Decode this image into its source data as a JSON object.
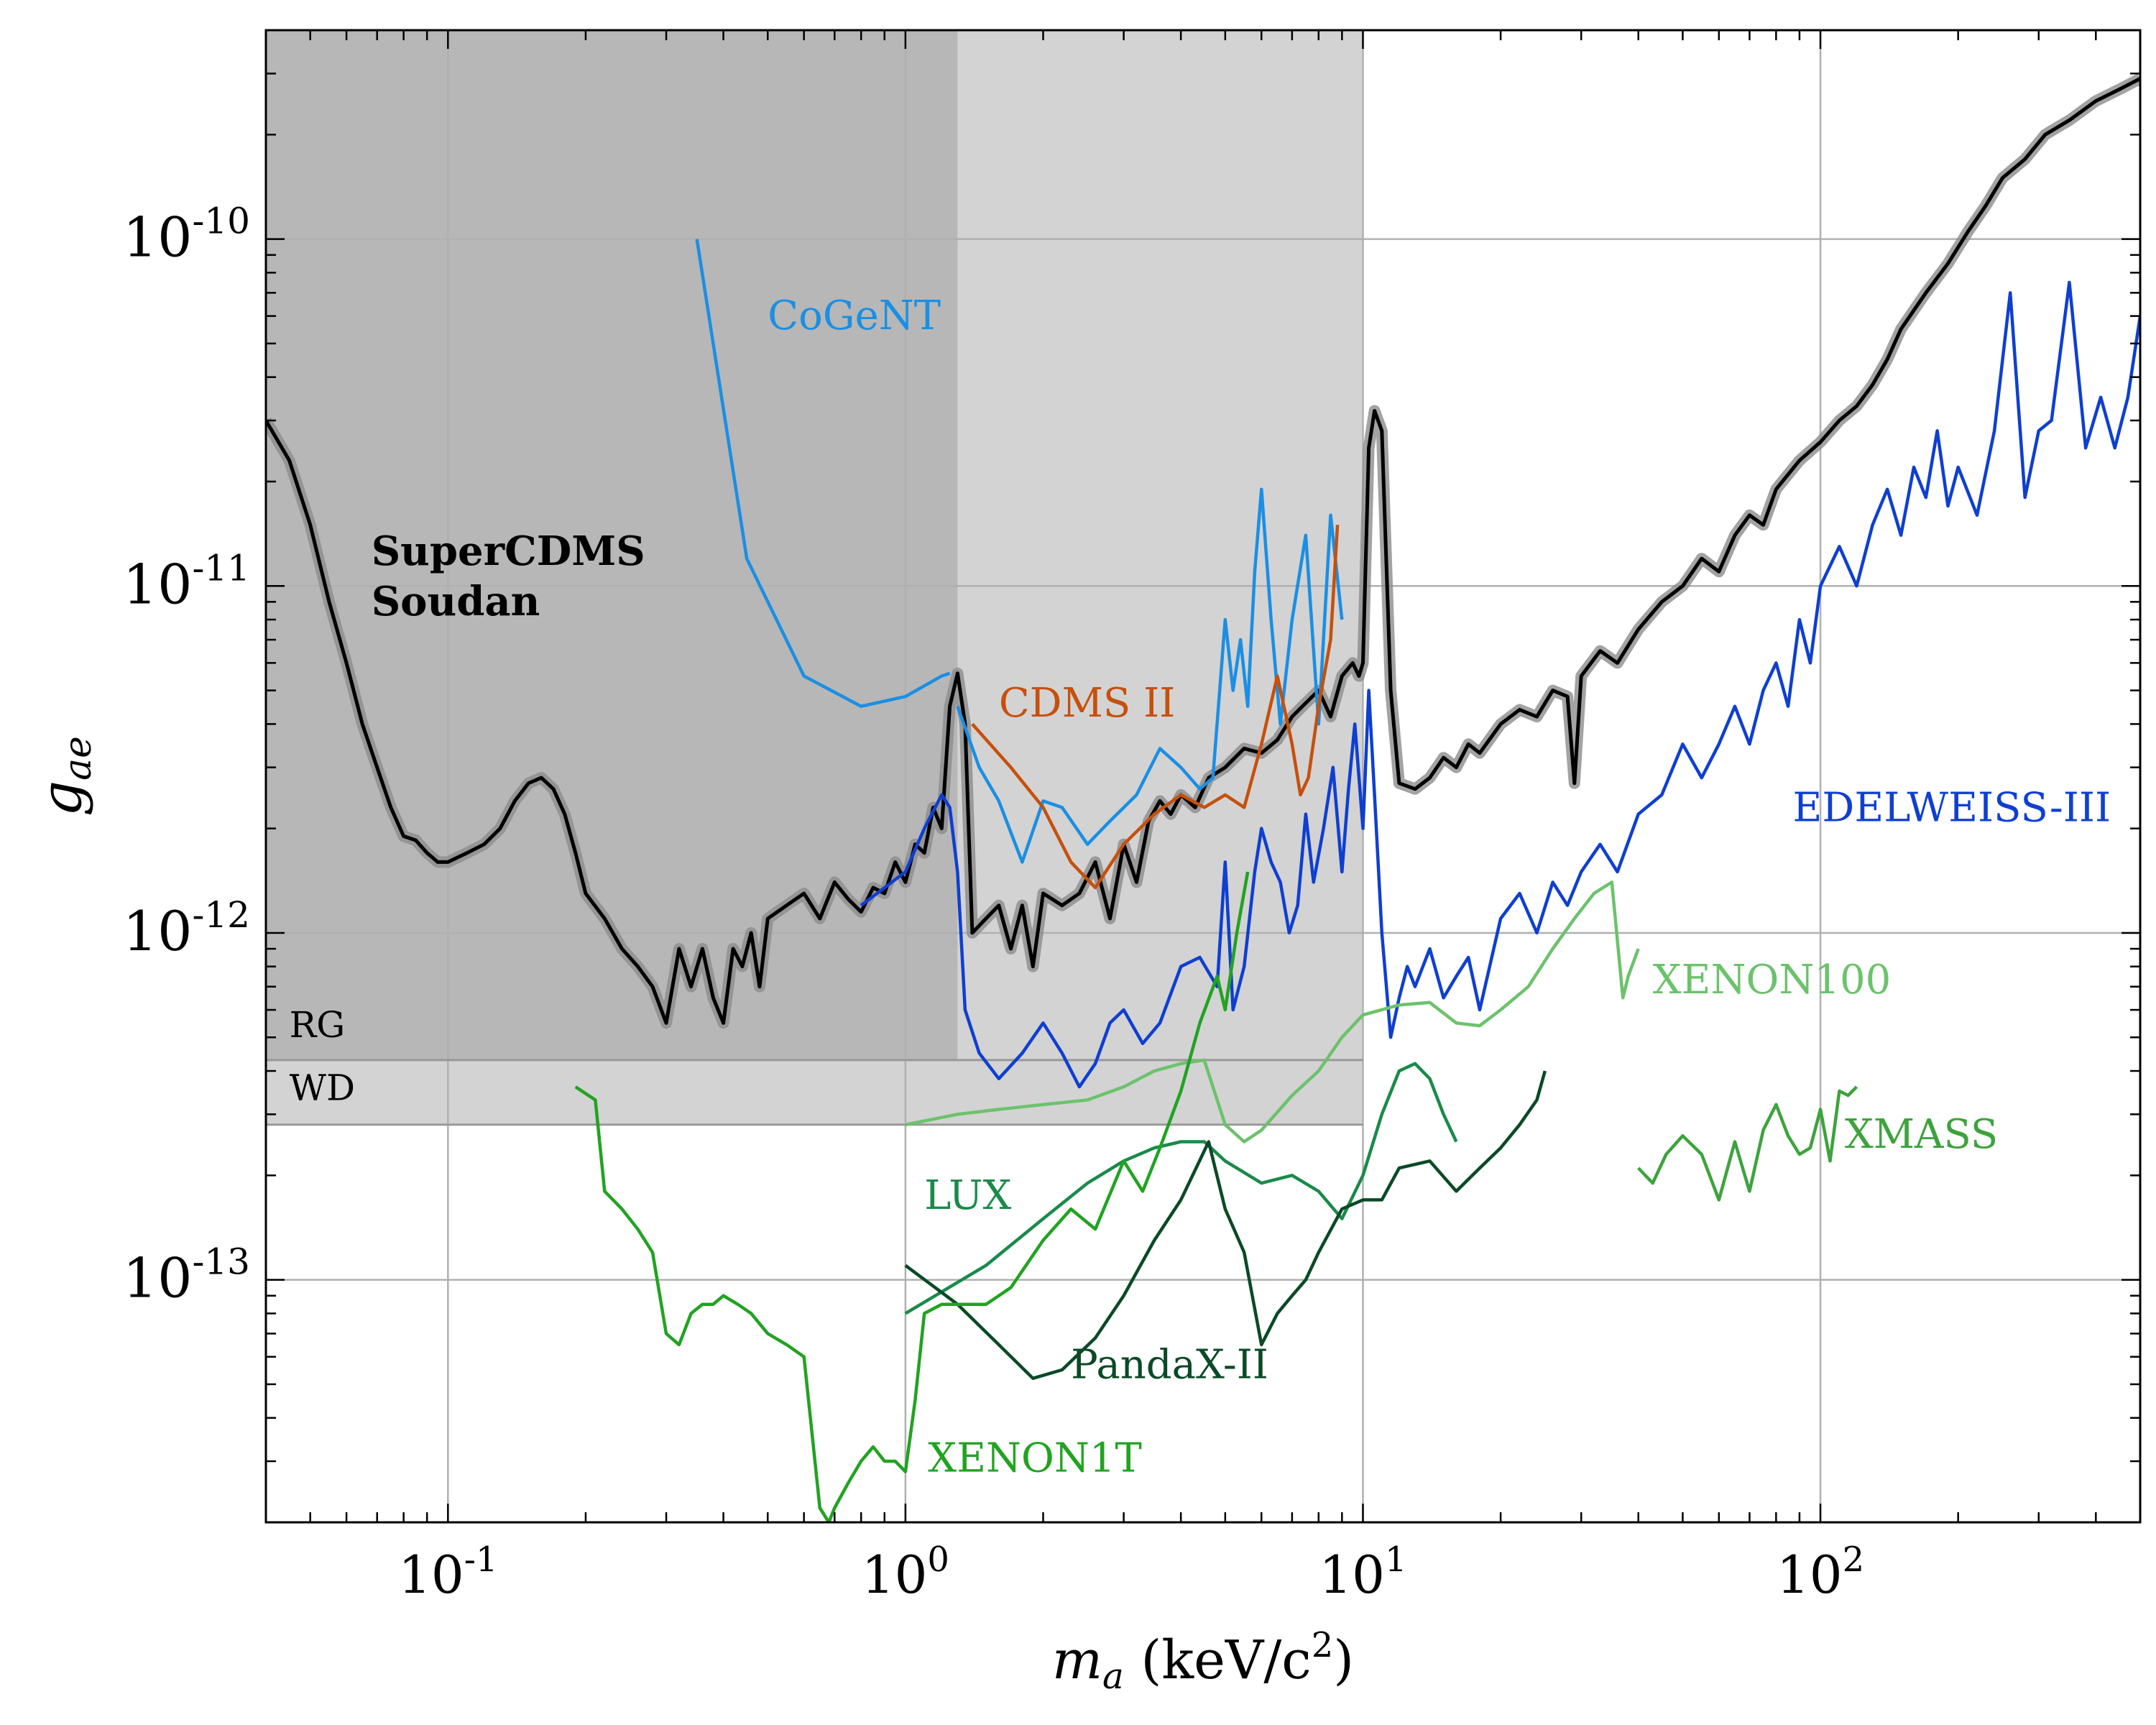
{
  "chart_data": {
    "type": "line",
    "xscale": "log",
    "yscale": "log",
    "xlim": [
      0.04,
      500
    ],
    "ylim": [
      2e-14,
      4e-10
    ],
    "grid": true,
    "xlabel": {
      "main": "m",
      "sub": "a",
      "unit_open": " (keV/c",
      "unit_sup": "2",
      "unit_close": ")"
    },
    "ylabel": {
      "main": "g",
      "sub": "ae"
    },
    "x_ticks": [
      {
        "value": 0.1,
        "base": "10",
        "exp": "-1"
      },
      {
        "value": 1,
        "base": "10",
        "exp": "0"
      },
      {
        "value": 10,
        "base": "10",
        "exp": "1"
      },
      {
        "value": 100,
        "base": "10",
        "exp": "2"
      }
    ],
    "y_ticks": [
      {
        "value": 1e-10,
        "base": "10",
        "exp": "-10"
      },
      {
        "value": 1e-11,
        "base": "10",
        "exp": "-11"
      },
      {
        "value": 1e-12,
        "base": "10",
        "exp": "-12"
      },
      {
        "value": 1e-13,
        "base": "10",
        "exp": "-13"
      }
    ],
    "regions": [
      {
        "name": "dark-excluded-region",
        "x": [
          0.04,
          1.3
        ],
        "y": [
          4.3e-13,
          4e-10
        ],
        "color": "#b7b7b7"
      },
      {
        "name": "light-excluded-region",
        "x": [
          1.3,
          10
        ],
        "y": [
          4.3e-13,
          4e-10
        ],
        "color": "#d3d3d3"
      },
      {
        "name": "wd-band",
        "x": [
          0.04,
          10
        ],
        "y": [
          2.8e-13,
          4.3e-13
        ],
        "color": "#d3d3d3"
      }
    ],
    "bounds": [
      {
        "label": "RG",
        "y": 4.3e-13,
        "x_end": 10,
        "label_x": 0.045,
        "label_y": 5e-13
      },
      {
        "label": "WD",
        "y": 2.8e-13,
        "x_end": 10,
        "label_x": 0.045,
        "label_y": 3.3e-13
      }
    ],
    "series": [
      {
        "name": "SuperCDMS Soudan",
        "label_lines": [
          "SuperCDMS",
          "Soudan"
        ],
        "label_x": 0.068,
        "label_y": 1.15e-11,
        "color": "#000000",
        "bold": true,
        "band": true,
        "x": [
          0.04,
          0.045,
          0.05,
          0.055,
          0.06,
          0.065,
          0.07,
          0.075,
          0.08,
          0.085,
          0.09,
          0.095,
          0.1,
          0.11,
          0.12,
          0.13,
          0.14,
          0.15,
          0.16,
          0.17,
          0.18,
          0.19,
          0.2,
          0.22,
          0.24,
          0.26,
          0.28,
          0.3,
          0.32,
          0.34,
          0.36,
          0.38,
          0.4,
          0.42,
          0.44,
          0.46,
          0.48,
          0.5,
          0.55,
          0.6,
          0.65,
          0.7,
          0.75,
          0.8,
          0.85,
          0.9,
          0.95,
          1.0,
          1.05,
          1.1,
          1.15,
          1.2,
          1.25,
          1.3,
          1.35,
          1.4,
          1.5,
          1.6,
          1.7,
          1.8,
          1.9,
          2.0,
          2.2,
          2.4,
          2.6,
          2.8,
          3.0,
          3.2,
          3.4,
          3.6,
          3.8,
          4.0,
          4.3,
          4.6,
          5.0,
          5.5,
          6.0,
          6.5,
          7.0,
          7.5,
          8.0,
          8.5,
          9.0,
          9.5,
          9.8,
          10.0,
          10.3,
          10.6,
          11.0,
          11.5,
          12.0,
          13.0,
          14.0,
          15.0,
          16.0,
          17.0,
          18.0,
          20.0,
          22.0,
          24.0,
          26.0,
          28.0,
          29.0,
          30.0,
          33.0,
          36.0,
          40.0,
          45.0,
          50.0,
          55.0,
          60.0,
          65.0,
          70.0,
          75.0,
          80.0,
          90.0,
          100.0,
          110.0,
          120.0,
          130.0,
          140.0,
          150.0,
          170.0,
          190.0,
          210.0,
          230.0,
          250.0,
          280.0,
          310.0,
          350.0,
          400.0,
          450.0,
          500.0
        ],
        "y": [
          3e-11,
          2.3e-11,
          1.5e-11,
          9e-12,
          6e-12,
          4e-12,
          3e-12,
          2.3e-12,
          1.9e-12,
          1.85e-12,
          1.7e-12,
          1.6e-12,
          1.6e-12,
          1.7e-12,
          1.8e-12,
          2e-12,
          2.4e-12,
          2.7e-12,
          2.8e-12,
          2.6e-12,
          2.2e-12,
          1.7e-12,
          1.3e-12,
          1.1e-12,
          9e-13,
          8e-13,
          7e-13,
          5.5e-13,
          9e-13,
          7e-13,
          9e-13,
          6.5e-13,
          5.5e-13,
          9e-13,
          8e-13,
          1e-12,
          7e-13,
          1.1e-12,
          1.2e-12,
          1.3e-12,
          1.1e-12,
          1.4e-12,
          1.25e-12,
          1.15e-12,
          1.35e-12,
          1.3e-12,
          1.6e-12,
          1.4e-12,
          1.8e-12,
          1.7e-12,
          2.3e-12,
          2e-12,
          4.5e-12,
          5.6e-12,
          4e-12,
          1e-12,
          1.1e-12,
          1.2e-12,
          9e-13,
          1.2e-12,
          8e-13,
          1.3e-12,
          1.2e-12,
          1.3e-12,
          1.6e-12,
          1.1e-12,
          1.8e-12,
          1.4e-12,
          2.1e-12,
          2.4e-12,
          2.2e-12,
          2.5e-12,
          2.3e-12,
          2.8e-12,
          3e-12,
          3.4e-12,
          3.3e-12,
          3.6e-12,
          4.2e-12,
          4.6e-12,
          5e-12,
          4.2e-12,
          5.5e-12,
          6e-12,
          5.5e-12,
          6e-12,
          2.5e-11,
          3.2e-11,
          2.8e-11,
          5e-12,
          2.7e-12,
          2.6e-12,
          2.8e-12,
          3.2e-12,
          3e-12,
          3.5e-12,
          3.3e-12,
          4e-12,
          4.4e-12,
          4.2e-12,
          5e-12,
          4.8e-12,
          2.7e-12,
          5.5e-12,
          6.5e-12,
          6e-12,
          7.5e-12,
          9e-12,
          1e-11,
          1.2e-11,
          1.1e-11,
          1.4e-11,
          1.6e-11,
          1.5e-11,
          1.9e-11,
          2.3e-11,
          2.6e-11,
          3e-11,
          3.3e-11,
          3.8e-11,
          4.5e-11,
          5.5e-11,
          7e-11,
          8.5e-11,
          1.05e-10,
          1.25e-10,
          1.5e-10,
          1.7e-10,
          2e-10,
          2.2e-10,
          2.5e-10,
          2.7e-10,
          2.9e-10
        ]
      },
      {
        "name": "CoGeNT",
        "label_lines": [
          "CoGeNT"
        ],
        "label_x": 0.5,
        "label_y": 5.5e-11,
        "color": "#1a8fe3",
        "x": [
          0.35,
          0.45,
          0.6,
          0.8,
          1.0,
          1.2,
          1.25
        ],
        "y": [
          1e-10,
          1.2e-11,
          5.5e-12,
          4.5e-12,
          4.8e-12,
          5.5e-12,
          5.6e-12
        ]
      },
      {
        "name": "CoGeNT-high-mass",
        "label_lines": [],
        "color": "#1a8fe3",
        "x": [
          1.3,
          1.45,
          1.6,
          1.8,
          2.0,
          2.2,
          2.5,
          2.8,
          3.2,
          3.6,
          4.0,
          4.4,
          4.7,
          5.0,
          5.2,
          5.4,
          5.6,
          5.8,
          6.0,
          6.3,
          6.6,
          7.0,
          7.5,
          8.0,
          8.5,
          9.0
        ],
        "y": [
          4.5e-12,
          3e-12,
          2.4e-12,
          1.6e-12,
          2.4e-12,
          2.3e-12,
          1.8e-12,
          2.1e-12,
          2.5e-12,
          3.4e-12,
          3e-12,
          2.6e-12,
          2.8e-12,
          8e-12,
          5e-12,
          7e-12,
          4.5e-12,
          1.1e-11,
          1.9e-11,
          8e-12,
          4e-12,
          8e-12,
          1.4e-11,
          4e-12,
          1.6e-11,
          8e-12
        ]
      },
      {
        "name": "CDMS II",
        "label_lines": [
          "CDMS II"
        ],
        "label_x": 1.6,
        "label_y": 4.2e-12,
        "color": "#c6500c",
        "x": [
          1.4,
          1.7,
          2.0,
          2.3,
          2.6,
          3.0,
          3.5,
          4.0,
          4.5,
          5.0,
          5.5,
          6.0,
          6.5,
          7.0,
          7.3,
          7.6,
          8.0,
          8.5,
          8.8
        ],
        "y": [
          4e-12,
          3e-12,
          2.3e-12,
          1.6e-12,
          1.35e-12,
          1.8e-12,
          2.2e-12,
          2.5e-12,
          2.3e-12,
          2.5e-12,
          2.3e-12,
          3.5e-12,
          5.5e-12,
          3.5e-12,
          2.5e-12,
          2.8e-12,
          4.5e-12,
          7e-12,
          1.5e-11
        ]
      },
      {
        "name": "EDELWEISS-III",
        "label_lines": [
          "EDELWEISS-III"
        ],
        "label_x": 87,
        "label_y": 2.1e-12,
        "color": "#0f3fd1",
        "x": [
          0.8,
          1.0,
          1.1,
          1.2,
          1.25,
          1.3,
          1.35,
          1.45,
          1.6,
          1.8,
          2.0,
          2.2,
          2.4,
          2.6,
          2.8,
          3.0,
          3.3,
          3.6,
          4.0,
          4.4,
          4.8,
          5.0,
          5.2,
          5.5,
          5.8,
          6.0,
          6.3,
          6.6,
          6.9,
          7.2,
          7.5,
          7.8,
          8.2,
          8.6,
          9.0,
          9.3,
          9.6,
          10.0,
          10.3,
          10.6,
          11.0,
          11.5,
          12.0,
          12.5,
          13.0,
          14.0,
          15.0,
          16.0,
          17.0,
          18.0,
          20.0,
          22.0,
          24.0,
          26.0,
          28.0,
          30.0,
          33.0,
          36.0,
          40.0,
          45.0,
          50.0,
          55.0,
          60.0,
          65.0,
          70.0,
          75.0,
          80.0,
          85.0,
          90.0,
          95.0,
          100.0,
          110.0,
          120.0,
          130.0,
          140.0,
          150.0,
          160.0,
          170.0,
          180.0,
          190.0,
          200.0,
          220.0,
          240.0,
          260.0,
          280.0,
          300.0,
          320.0,
          350.0,
          380.0,
          410.0,
          440.0,
          470.0,
          500.0
        ],
        "y": [
          1.2e-12,
          1.5e-12,
          2e-12,
          2.5e-12,
          2.3e-12,
          1.5e-12,
          6e-13,
          4.5e-13,
          3.8e-13,
          4.5e-13,
          5.5e-13,
          4.5e-13,
          3.6e-13,
          4.2e-13,
          5.5e-13,
          6e-13,
          4.8e-13,
          5.5e-13,
          8e-13,
          8.5e-13,
          7e-13,
          1.6e-12,
          6e-13,
          8e-13,
          1.5e-12,
          2e-12,
          1.6e-12,
          1.4e-12,
          1e-12,
          1.2e-12,
          2.2e-12,
          1.4e-12,
          2e-12,
          3e-12,
          1.5e-12,
          2.6e-12,
          4e-12,
          2e-12,
          5e-12,
          2.5e-12,
          1e-12,
          5e-13,
          6.5e-13,
          8e-13,
          7e-13,
          9e-13,
          6.5e-13,
          7.5e-13,
          8.5e-13,
          6e-13,
          1.1e-12,
          1.3e-12,
          1e-12,
          1.4e-12,
          1.2e-12,
          1.5e-12,
          1.8e-12,
          1.5e-12,
          2.2e-12,
          2.5e-12,
          3.5e-12,
          2.8e-12,
          3.5e-12,
          4.5e-12,
          3.5e-12,
          5e-12,
          6e-12,
          4.5e-12,
          8e-12,
          6e-12,
          1e-11,
          1.3e-11,
          1e-11,
          1.5e-11,
          1.9e-11,
          1.4e-11,
          2.2e-11,
          1.8e-11,
          2.8e-11,
          1.7e-11,
          2.2e-11,
          1.6e-11,
          2.8e-11,
          7e-11,
          1.8e-11,
          2.8e-11,
          3e-11,
          7.5e-11,
          2.5e-11,
          3.5e-11,
          2.5e-11,
          3.5e-11,
          6e-11
        ]
      },
      {
        "name": "XENON100",
        "label_lines": [
          "XENON100"
        ],
        "label_x": 43,
        "label_y": 6.7e-13,
        "color": "#6cc26c",
        "x": [
          1.0,
          1.3,
          1.6,
          2.0,
          2.5,
          3.0,
          3.5,
          4.0,
          4.5,
          5.0,
          5.5,
          6.0,
          7.0,
          8.0,
          9.0,
          10.0,
          12.0,
          14.0,
          16.0,
          18.0,
          20.0,
          23.0,
          26.0,
          29.0,
          32.0,
          35.0,
          37.0,
          38.0,
          40.0
        ],
        "y": [
          2.8e-13,
          3e-13,
          3.1e-13,
          3.2e-13,
          3.3e-13,
          3.6e-13,
          4e-13,
          4.2e-13,
          4.3e-13,
          2.8e-13,
          2.5e-13,
          2.7e-13,
          3.4e-13,
          4e-13,
          5e-13,
          5.8e-13,
          6.2e-13,
          6.3e-13,
          5.5e-13,
          5.4e-13,
          6e-13,
          7e-13,
          9e-13,
          1.1e-12,
          1.3e-12,
          1.4e-12,
          6.5e-13,
          7.5e-13,
          9e-13
        ]
      },
      {
        "name": "LUX",
        "label_lines": [
          "LUX"
        ],
        "label_x": 1.1,
        "label_y": 1.6e-13,
        "color": "#1a8a4a",
        "x": [
          1.0,
          1.5,
          2.0,
          2.5,
          3.0,
          3.5,
          4.0,
          4.5,
          5.0,
          6.0,
          7.0,
          8.0,
          9.0,
          10.0,
          11.0,
          12.0,
          13.0,
          14.0,
          15.0,
          16.0
        ],
        "y": [
          8e-14,
          1.1e-13,
          1.5e-13,
          1.9e-13,
          2.2e-13,
          2.4e-13,
          2.5e-13,
          2.5e-13,
          2.2e-13,
          1.9e-13,
          2e-13,
          1.8e-13,
          1.5e-13,
          2e-13,
          3e-13,
          4e-13,
          4.2e-13,
          3.8e-13,
          3e-13,
          2.5e-13
        ]
      },
      {
        "name": "PandaX-II",
        "label_lines": [
          "PandaX-II"
        ],
        "label_x": 2.3,
        "label_y": 5.2e-14,
        "color": "#0a4a26",
        "x": [
          1.0,
          1.3,
          1.6,
          1.9,
          2.2,
          2.6,
          3.0,
          3.5,
          4.0,
          4.6,
          5.0,
          5.5,
          6.0,
          6.5,
          7.0,
          7.5,
          8.0,
          9.0,
          10.0,
          11.0,
          12.0,
          14.0,
          16.0,
          18.0,
          20.0,
          22.0,
          24.0,
          25.0
        ],
        "y": [
          1.1e-13,
          8.5e-14,
          6.5e-14,
          5.2e-14,
          5.5e-14,
          6.8e-14,
          9e-14,
          1.3e-13,
          1.7e-13,
          2.5e-13,
          1.6e-13,
          1.2e-13,
          6.5e-14,
          8e-14,
          9e-14,
          1e-13,
          1.2e-13,
          1.6e-13,
          1.7e-13,
          1.7e-13,
          2.1e-13,
          2.2e-13,
          1.8e-13,
          2.1e-13,
          2.4e-13,
          2.8e-13,
          3.3e-13,
          4e-13
        ]
      },
      {
        "name": "XENON1T",
        "label_lines": [
          "XENON1T"
        ],
        "label_x": 1.12,
        "label_y": 2.8e-14,
        "color": "#21a321",
        "x": [
          0.19,
          0.21,
          0.22,
          0.24,
          0.26,
          0.28,
          0.3,
          0.32,
          0.34,
          0.36,
          0.38,
          0.4,
          0.43,
          0.46,
          0.5,
          0.55,
          0.6,
          0.65,
          0.68,
          0.7,
          0.75,
          0.8,
          0.85,
          0.9,
          0.95,
          1.0,
          1.05,
          1.1,
          1.2,
          1.3,
          1.5,
          1.7,
          2.0,
          2.3,
          2.6,
          3.0,
          3.3,
          3.6,
          4.0,
          4.4,
          4.8,
          5.0,
          5.3,
          5.6
        ],
        "y": [
          3.6e-13,
          3.3e-13,
          1.8e-13,
          1.6e-13,
          1.4e-13,
          1.2e-13,
          7e-14,
          6.5e-14,
          8e-14,
          8.5e-14,
          8.5e-14,
          9e-14,
          8.5e-14,
          8e-14,
          7e-14,
          6.5e-14,
          6e-14,
          2.2e-14,
          2e-14,
          2.2e-14,
          2.6e-14,
          3e-14,
          3.3e-14,
          3e-14,
          3e-14,
          2.8e-14,
          4.5e-14,
          8e-14,
          8.5e-14,
          8.5e-14,
          8.5e-14,
          9.5e-14,
          1.3e-13,
          1.6e-13,
          1.4e-13,
          2.2e-13,
          1.8e-13,
          2.4e-13,
          3.5e-13,
          5.5e-13,
          7.5e-13,
          6e-13,
          1e-12,
          1.5e-12
        ]
      },
      {
        "name": "XMASS",
        "label_lines": [
          "XMASS"
        ],
        "label_x": 113,
        "label_y": 2.4e-13,
        "color": "#3da33d",
        "x": [
          40,
          43,
          46,
          50,
          55,
          60,
          65,
          70,
          75,
          80,
          85,
          90,
          95,
          100,
          105,
          110,
          115,
          120
        ],
        "y": [
          2.1e-13,
          1.9e-13,
          2.3e-13,
          2.6e-13,
          2.3e-13,
          1.7e-13,
          2.5e-13,
          1.8e-13,
          2.7e-13,
          3.2e-13,
          2.6e-13,
          2.3e-13,
          2.4e-13,
          3.1e-13,
          2.2e-13,
          3.5e-13,
          3.4e-13,
          3.6e-13
        ]
      }
    ]
  }
}
